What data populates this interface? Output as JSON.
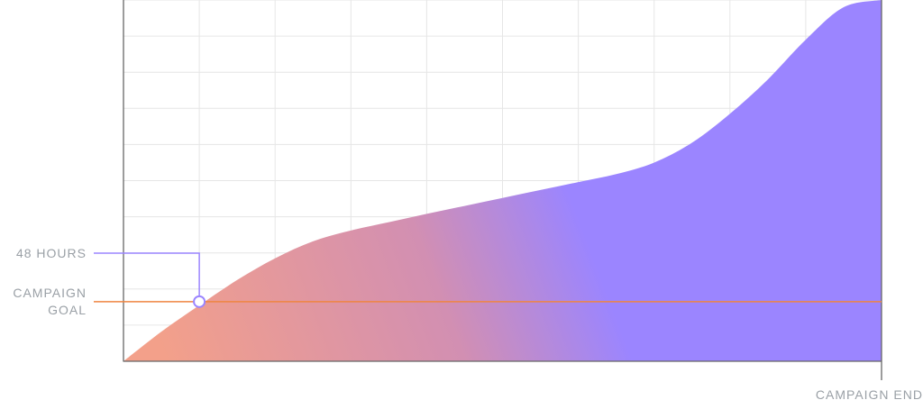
{
  "chart_data": {
    "type": "area",
    "title": "",
    "xlabel": "",
    "ylabel": "",
    "x_end_label": "CAMPAIGN END",
    "xlim": [
      0,
      10
    ],
    "ylim": [
      0,
      10
    ],
    "grid": true,
    "series": [
      {
        "x": [
          0,
          0.5,
          1,
          1.5,
          2,
          2.5,
          3,
          3.5,
          4,
          4.5,
          5,
          5.5,
          6,
          6.5,
          7,
          7.5,
          8,
          8.5,
          9,
          9.5,
          10
        ],
        "values": [
          0,
          0.82,
          1.55,
          2.25,
          2.85,
          3.32,
          3.62,
          3.85,
          4.08,
          4.3,
          4.52,
          4.74,
          4.96,
          5.18,
          5.5,
          6.05,
          6.85,
          7.8,
          8.9,
          9.8,
          10
        ]
      }
    ],
    "annotations": [
      {
        "type": "hline",
        "y": 1.65,
        "label": "CAMPAIGN\nGOAL"
      },
      {
        "type": "marker",
        "x": 1.0,
        "y": 1.65,
        "label": "48 HOURS"
      }
    ],
    "colors": {
      "gradient_start": "#f3a08a",
      "gradient_mid": "#d28fb2",
      "gradient_end": "#9b85ff",
      "goal_line": "#ef8541",
      "marker": "#9b85ff",
      "axis": "#666666",
      "grid": "#e6e6e6",
      "label": "#9aa0a6"
    }
  }
}
